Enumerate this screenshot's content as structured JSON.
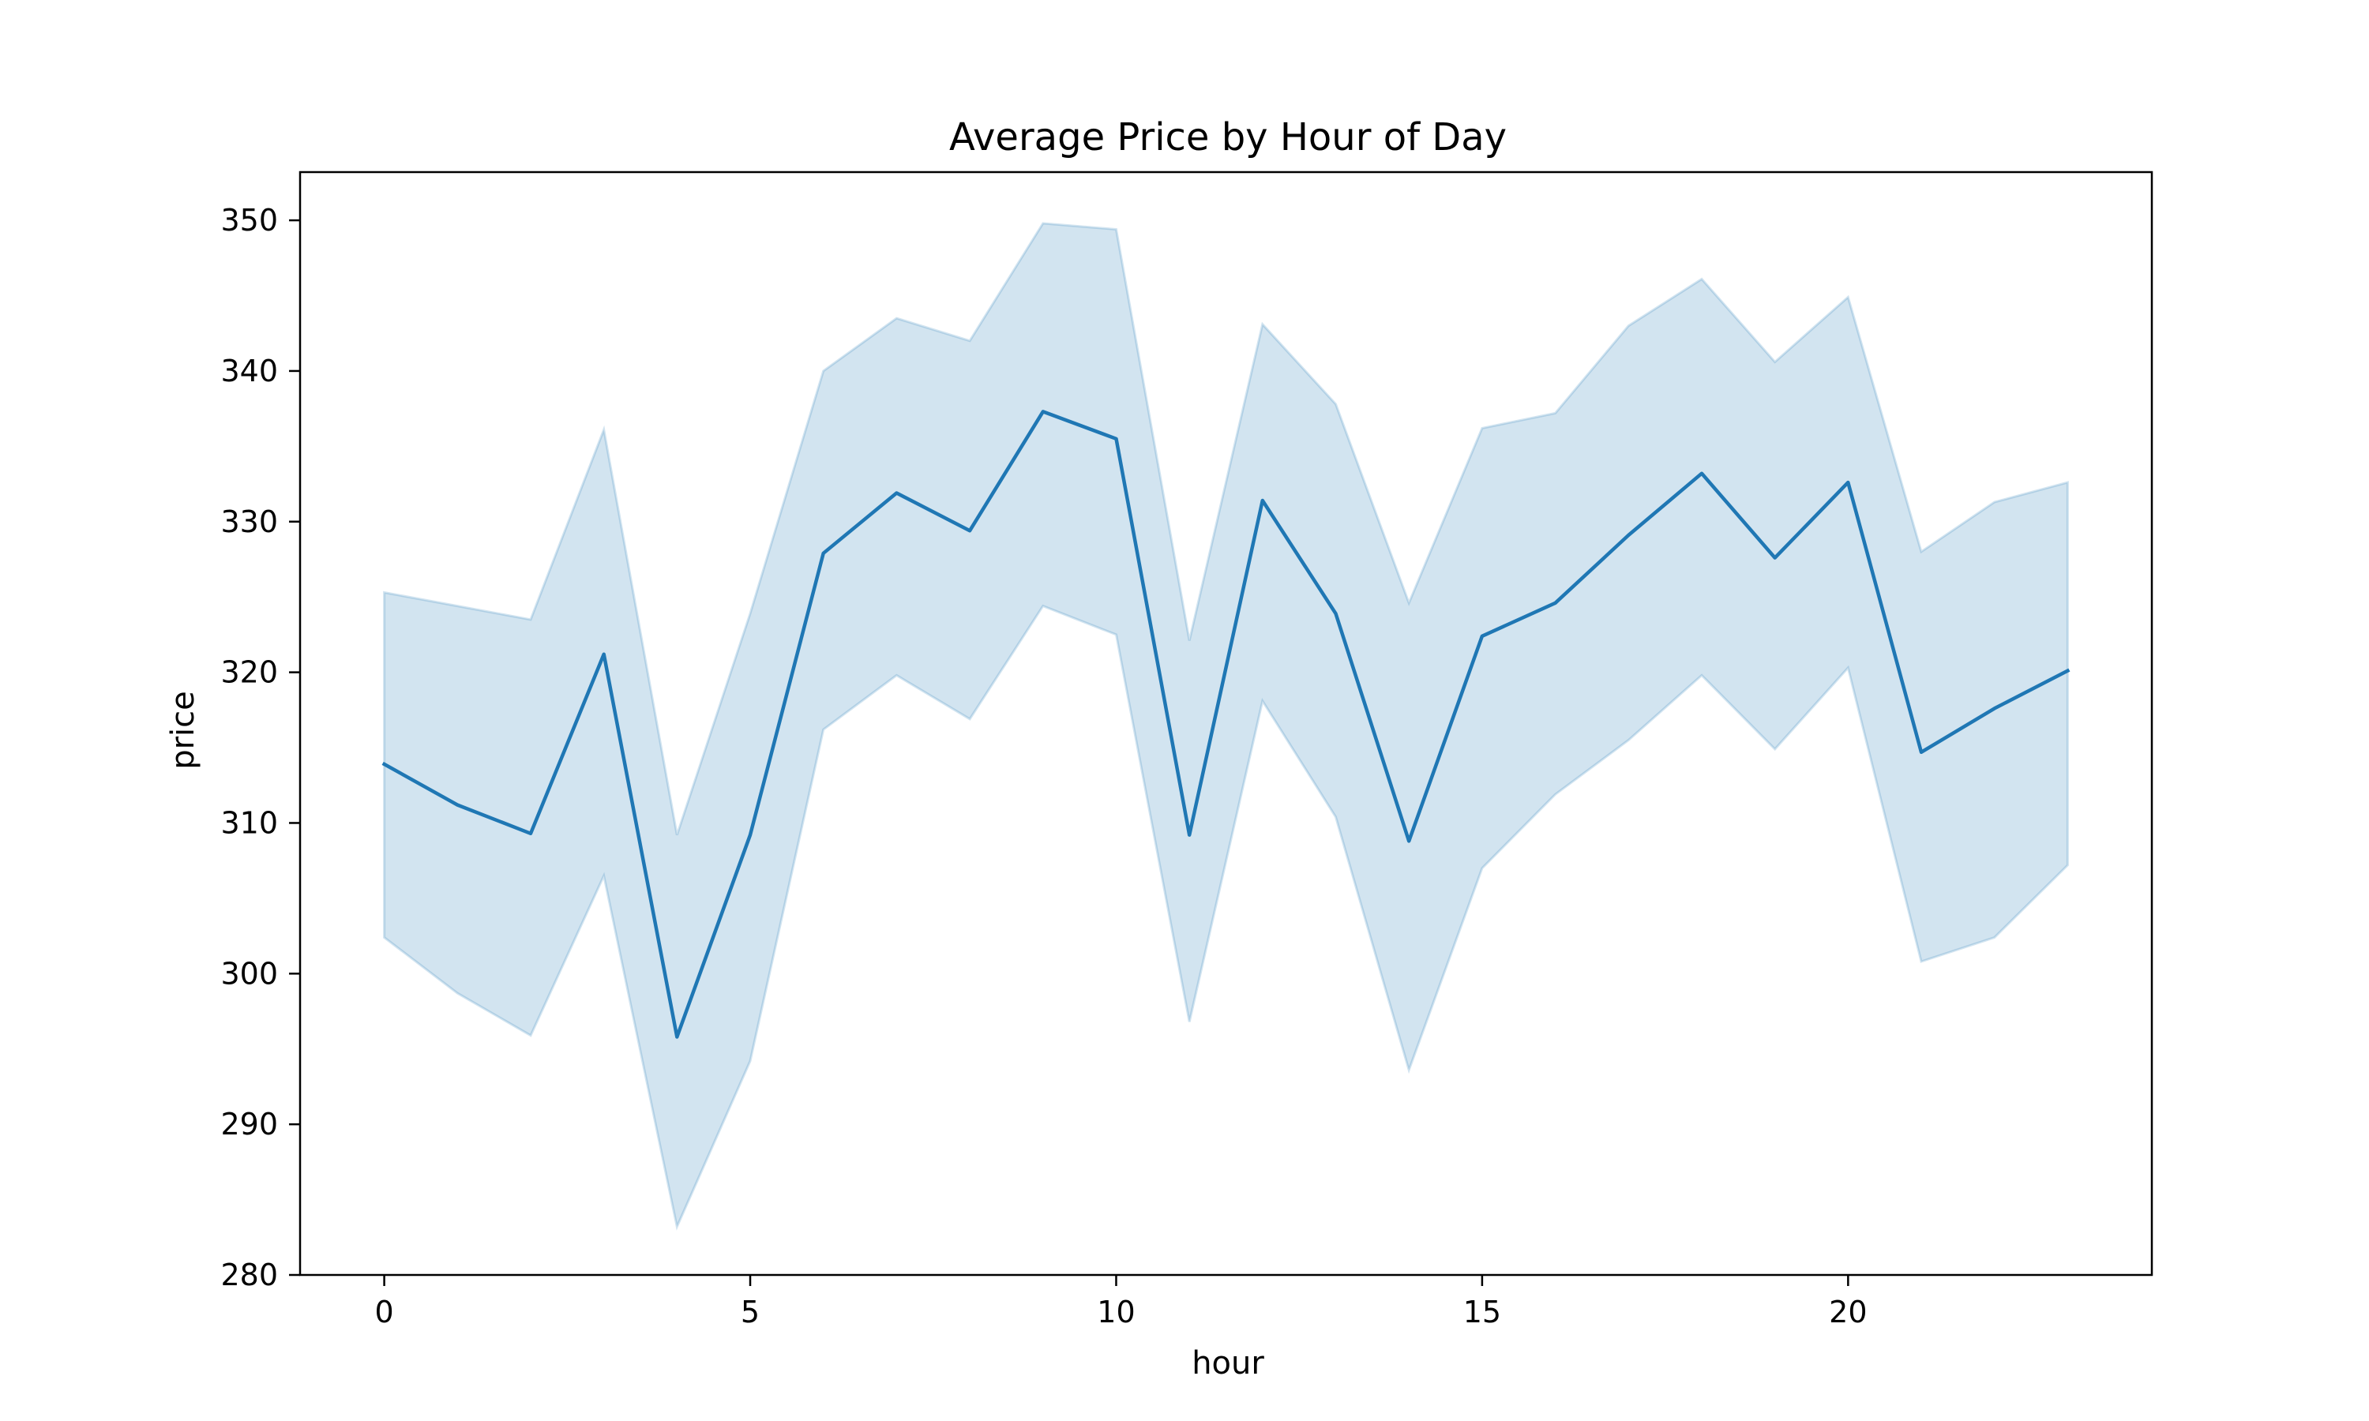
{
  "chart_data": {
    "type": "line",
    "title": "Average Price by Hour of Day",
    "xlabel": "hour",
    "ylabel": "price",
    "xlim": [
      -1.15,
      24.15
    ],
    "ylim": [
      280,
      353.2
    ],
    "x_ticks": [
      0,
      5,
      10,
      15,
      20
    ],
    "y_ticks": [
      280,
      290,
      300,
      310,
      320,
      330,
      340,
      350
    ],
    "grid": false,
    "legend": "none",
    "colors": {
      "line": "#1f77b4",
      "band": "#1f77b4"
    },
    "series": [
      {
        "x": [
          0,
          1,
          2,
          3,
          4,
          5,
          6,
          7,
          8,
          9,
          10,
          11,
          12,
          13,
          14,
          15,
          16,
          17,
          18,
          19,
          20,
          21,
          22,
          23
        ],
        "y": [
          313.9,
          311.2,
          309.3,
          321.2,
          295.8,
          309.2,
          327.9,
          331.9,
          329.4,
          337.3,
          335.5,
          309.2,
          331.4,
          323.9,
          308.8,
          322.4,
          324.6,
          329.1,
          333.2,
          327.6,
          332.6,
          314.7,
          317.6,
          320.1
        ],
        "ci_lower": [
          302.4,
          298.7,
          295.9,
          306.5,
          283.2,
          294.2,
          316.2,
          319.8,
          316.9,
          324.4,
          322.5,
          296.8,
          318.1,
          310.4,
          293.6,
          307.0,
          311.9,
          315.5,
          319.8,
          314.9,
          320.3,
          300.8,
          302.4,
          307.2
        ],
        "ci_upper": [
          325.3,
          324.4,
          323.5,
          336.1,
          309.2,
          323.9,
          340.0,
          343.5,
          342.0,
          349.8,
          349.4,
          322.1,
          343.1,
          337.8,
          324.6,
          336.2,
          337.2,
          343.0,
          346.1,
          340.6,
          344.9,
          328.0,
          331.3,
          332.6
        ]
      }
    ]
  }
}
